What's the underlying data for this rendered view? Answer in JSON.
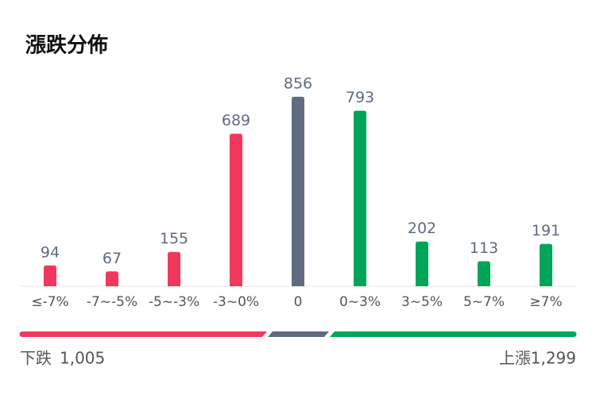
{
  "chart_data": {
    "type": "bar",
    "title": "漲跌分佈",
    "categories": [
      "≤-7%",
      "-7~-5%",
      "-5~-3%",
      "-3~0%",
      "0",
      "0~3%",
      "3~5%",
      "5~7%",
      "≥7%"
    ],
    "values": [
      94,
      67,
      155,
      689,
      856,
      793,
      202,
      113,
      191
    ],
    "colors": [
      "#f0395a",
      "#f0395a",
      "#f0395a",
      "#f0395a",
      "#5f6b80",
      "#00a55a",
      "#00a55a",
      "#00a55a",
      "#00a55a"
    ],
    "summary": {
      "down_label": "下跌",
      "down_total": "1,005",
      "up_label": "上漲",
      "up_total": "1,299"
    }
  }
}
